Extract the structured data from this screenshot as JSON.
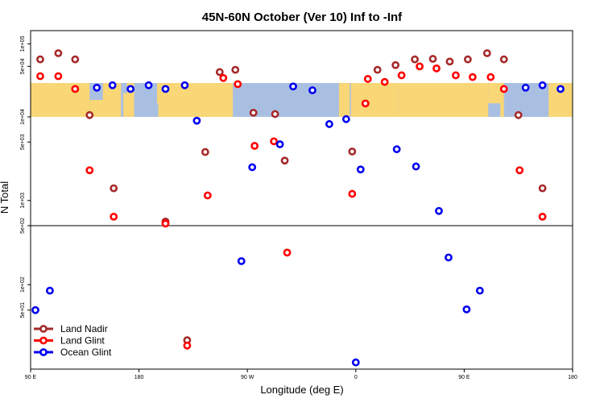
{
  "chart_data": {
    "type": "scatter",
    "title": "45N-60N October (Ver 10)   Inf to -Inf",
    "xlabel": "Longitude (deg E)",
    "ylabel": "N Total",
    "x_ticks": [
      {
        "value": 90,
        "label": "90 E"
      },
      {
        "value": 180,
        "label": "180"
      },
      {
        "value": 270,
        "label": "90 W"
      },
      {
        "value": 360,
        "label": "0"
      },
      {
        "value": 450,
        "label": "90 E"
      },
      {
        "value": 540,
        "label": "180"
      }
    ],
    "xlim": [
      90,
      540
    ],
    "panels": [
      {
        "name": "top",
        "scale": "log",
        "ylim": [
          30000,
          150000
        ],
        "y_ticks": [
          {
            "value": 100000,
            "label": "1e+05"
          },
          {
            "value": 50000,
            "label": "5e+04"
          }
        ]
      },
      {
        "name": "middle",
        "scale": "log",
        "ylim": [
          500,
          10000
        ],
        "y_ticks": [
          {
            "value": 10000,
            "label": "1e+04"
          },
          {
            "value": 5000,
            "label": "5e+03"
          },
          {
            "value": 1000,
            "label": "1e+03"
          },
          {
            "value": 500,
            "label": "5e+02"
          }
        ]
      },
      {
        "name": "bottom",
        "scale": "log",
        "ylim": [
          10,
          500
        ],
        "y_ticks": [
          {
            "value": 100,
            "label": "1e+02"
          },
          {
            "value": 50,
            "label": "5e+01"
          }
        ]
      }
    ],
    "series": [
      {
        "name": "Land Nadir",
        "color": "#a52a2a",
        "points": [
          {
            "x": 98,
            "y": 62000,
            "panel": "top"
          },
          {
            "x": 113,
            "y": 75000,
            "panel": "top"
          },
          {
            "x": 127,
            "y": 62000,
            "panel": "top"
          },
          {
            "x": 139,
            "y": 10500,
            "panel": "middle"
          },
          {
            "x": 159,
            "y": 1400,
            "panel": "middle"
          },
          {
            "x": 202,
            "y": 560,
            "panel": "middle"
          },
          {
            "x": 220,
            "y": 22,
            "panel": "bottom"
          },
          {
            "x": 235,
            "y": 3800,
            "panel": "middle"
          },
          {
            "x": 247,
            "y": 42000,
            "panel": "top"
          },
          {
            "x": 260,
            "y": 45000,
            "panel": "top"
          },
          {
            "x": 275,
            "y": 11200,
            "panel": "middle"
          },
          {
            "x": 293,
            "y": 10800,
            "panel": "middle"
          },
          {
            "x": 301,
            "y": 3000,
            "panel": "middle"
          },
          {
            "x": 357,
            "y": 3850,
            "panel": "middle"
          },
          {
            "x": 378,
            "y": 45000,
            "panel": "top"
          },
          {
            "x": 393,
            "y": 52000,
            "panel": "top"
          },
          {
            "x": 409,
            "y": 62000,
            "panel": "top"
          },
          {
            "x": 424,
            "y": 63000,
            "panel": "top"
          },
          {
            "x": 438,
            "y": 58000,
            "panel": "top"
          },
          {
            "x": 453,
            "y": 62000,
            "panel": "top"
          },
          {
            "x": 469,
            "y": 75000,
            "panel": "top"
          },
          {
            "x": 483,
            "y": 62000,
            "panel": "top"
          },
          {
            "x": 495,
            "y": 10500,
            "panel": "middle"
          },
          {
            "x": 515,
            "y": 1400,
            "panel": "middle"
          }
        ]
      },
      {
        "name": "Land Glint",
        "color": "#ff0000",
        "points": [
          {
            "x": 98,
            "y": 37000,
            "panel": "top"
          },
          {
            "x": 113,
            "y": 37000,
            "panel": "top"
          },
          {
            "x": 127,
            "y": 25000,
            "panel": "top"
          },
          {
            "x": 139,
            "y": 2300,
            "panel": "middle"
          },
          {
            "x": 159,
            "y": 640,
            "panel": "middle"
          },
          {
            "x": 202,
            "y": 530,
            "panel": "middle"
          },
          {
            "x": 220,
            "y": 19,
            "panel": "bottom"
          },
          {
            "x": 237,
            "y": 1150,
            "panel": "middle"
          },
          {
            "x": 250,
            "y": 35000,
            "panel": "top"
          },
          {
            "x": 262,
            "y": 29000,
            "panel": "top"
          },
          {
            "x": 276,
            "y": 4500,
            "panel": "middle"
          },
          {
            "x": 292,
            "y": 5100,
            "panel": "middle"
          },
          {
            "x": 303,
            "y": 240,
            "panel": "bottom"
          },
          {
            "x": 357,
            "y": 1200,
            "panel": "middle"
          },
          {
            "x": 368,
            "y": 16000,
            "panel": "top"
          },
          {
            "x": 370,
            "y": 34000,
            "panel": "top"
          },
          {
            "x": 384,
            "y": 31000,
            "panel": "top"
          },
          {
            "x": 398,
            "y": 38000,
            "panel": "top"
          },
          {
            "x": 413,
            "y": 50000,
            "panel": "top"
          },
          {
            "x": 427,
            "y": 47000,
            "panel": "top"
          },
          {
            "x": 443,
            "y": 38000,
            "panel": "top"
          },
          {
            "x": 457,
            "y": 36000,
            "panel": "top"
          },
          {
            "x": 472,
            "y": 36000,
            "panel": "top"
          },
          {
            "x": 483,
            "y": 25000,
            "panel": "top"
          },
          {
            "x": 496,
            "y": 2300,
            "panel": "middle"
          },
          {
            "x": 515,
            "y": 640,
            "panel": "middle"
          }
        ]
      },
      {
        "name": "Ocean Glint",
        "color": "#0000ee",
        "points": [
          {
            "x": 94,
            "y": 50,
            "panel": "bottom"
          },
          {
            "x": 106,
            "y": 85,
            "panel": "bottom"
          },
          {
            "x": 145,
            "y": 26000,
            "panel": "top"
          },
          {
            "x": 158,
            "y": 28000,
            "panel": "top"
          },
          {
            "x": 173,
            "y": 25000,
            "panel": "top"
          },
          {
            "x": 188,
            "y": 28000,
            "panel": "top"
          },
          {
            "x": 202,
            "y": 25000,
            "panel": "top"
          },
          {
            "x": 218,
            "y": 28000,
            "panel": "top"
          },
          {
            "x": 228,
            "y": 9000,
            "panel": "middle"
          },
          {
            "x": 274,
            "y": 2500,
            "panel": "middle"
          },
          {
            "x": 265,
            "y": 190,
            "panel": "bottom"
          },
          {
            "x": 297,
            "y": 4700,
            "panel": "middle"
          },
          {
            "x": 308,
            "y": 27000,
            "panel": "top"
          },
          {
            "x": 324,
            "y": 24000,
            "panel": "top"
          },
          {
            "x": 338,
            "y": 8200,
            "panel": "middle"
          },
          {
            "x": 352,
            "y": 9400,
            "panel": "middle"
          },
          {
            "x": 364,
            "y": 2350,
            "panel": "middle"
          },
          {
            "x": 360,
            "y": 12,
            "panel": "bottom"
          },
          {
            "x": 394,
            "y": 4100,
            "panel": "middle"
          },
          {
            "x": 410,
            "y": 2550,
            "panel": "middle"
          },
          {
            "x": 429,
            "y": 750,
            "panel": "middle"
          },
          {
            "x": 437,
            "y": 210,
            "panel": "bottom"
          },
          {
            "x": 452,
            "y": 51,
            "panel": "bottom"
          },
          {
            "x": 463,
            "y": 85,
            "panel": "bottom"
          },
          {
            "x": 501,
            "y": 26000,
            "panel": "top"
          },
          {
            "x": 515,
            "y": 28000,
            "panel": "top"
          },
          {
            "x": 530,
            "y": 25000,
            "panel": "top"
          }
        ]
      }
    ],
    "legend": {
      "placement": "bottom-left"
    }
  }
}
